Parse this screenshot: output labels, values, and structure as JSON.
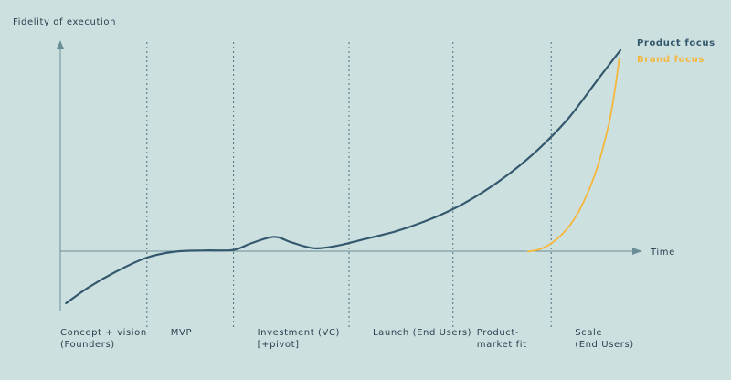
{
  "chart_data": {
    "type": "line",
    "title": "",
    "ylabel": "Fidelity of execution",
    "xlabel": "Time",
    "xlim": [
      0,
      100
    ],
    "ylim": [
      -10,
      40
    ],
    "grid": false,
    "phases": [
      {
        "lines": [
          "Concept + vision",
          "(Founders)"
        ],
        "boundary": 15
      },
      {
        "lines": [
          "MVP"
        ],
        "boundary": 30
      },
      {
        "lines": [
          "Investment (VC)",
          "[+pivot]"
        ],
        "boundary": 50
      },
      {
        "lines": [
          "Launch (End Users)"
        ],
        "boundary": 68
      },
      {
        "lines": [
          "Product-",
          "market fit"
        ],
        "boundary": 85
      },
      {
        "lines": [
          "Scale",
          "(End Users)"
        ],
        "boundary": null
      }
    ],
    "series": [
      {
        "name": "Product focus",
        "color": "#34596e",
        "x": [
          1,
          5,
          10,
          15,
          20,
          25,
          30,
          33,
          37,
          40,
          44,
          48,
          52,
          58,
          63,
          68,
          73,
          78,
          83,
          88,
          93,
          97
        ],
        "y": [
          -9,
          -6,
          -3,
          -0.6,
          0.5,
          0.7,
          0.8,
          2.0,
          3.2,
          2.2,
          1.1,
          1.6,
          2.6,
          4.2,
          6.0,
          8.3,
          11.3,
          15.0,
          19.5,
          25.0,
          32.0,
          37.5
        ]
      },
      {
        "name": "Brand focus",
        "color": "#f5b73b",
        "x": [
          81,
          83,
          85,
          87,
          89,
          91,
          93,
          95,
          96,
          96.8
        ],
        "y": [
          0.5,
          0.9,
          2.0,
          3.8,
          6.5,
          10.5,
          16.0,
          24.0,
          30.0,
          36.0
        ]
      }
    ]
  }
}
